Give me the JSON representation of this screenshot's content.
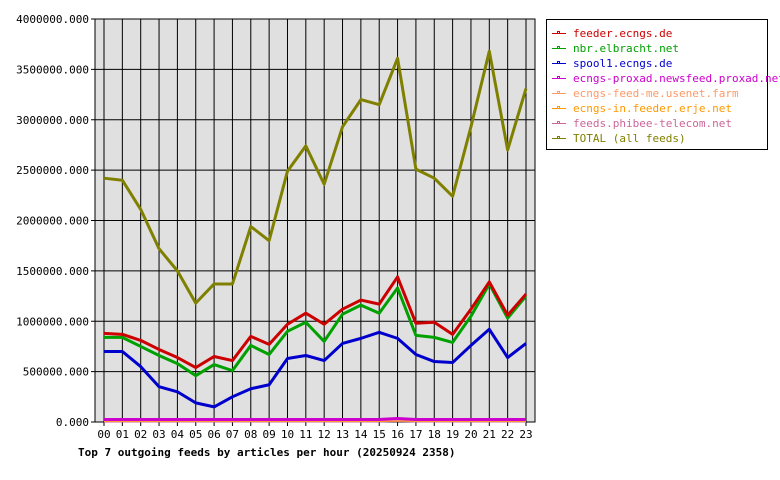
{
  "chart_data": {
    "type": "line",
    "title": "Top 7 outgoing feeds by articles per hour (20250924 2358)",
    "xlabel": "",
    "ylabel": "",
    "categories": [
      "00",
      "01",
      "02",
      "03",
      "04",
      "05",
      "06",
      "07",
      "08",
      "09",
      "10",
      "11",
      "12",
      "13",
      "14",
      "15",
      "16",
      "17",
      "18",
      "19",
      "20",
      "21",
      "22",
      "23"
    ],
    "y_ticks": [
      "0.000",
      "500000.000",
      "1000000.000",
      "1500000.000",
      "2000000.000",
      "2500000.000",
      "3000000.000",
      "3500000.000",
      "4000000.000"
    ],
    "ylim": [
      0,
      4000000
    ],
    "grid": true,
    "legend_position": "right",
    "series": [
      {
        "name": "feeder.ecngs.de",
        "color": "#cc0000",
        "values": [
          880000,
          870000,
          810000,
          720000,
          640000,
          540000,
          650000,
          610000,
          850000,
          770000,
          970000,
          1080000,
          970000,
          1120000,
          1210000,
          1170000,
          1440000,
          980000,
          990000,
          870000,
          1120000,
          1390000,
          1060000,
          1270000
        ]
      },
      {
        "name": "nbr.elbracht.net",
        "color": "#00a000",
        "values": [
          840000,
          840000,
          750000,
          660000,
          580000,
          460000,
          570000,
          510000,
          760000,
          670000,
          900000,
          990000,
          800000,
          1070000,
          1160000,
          1080000,
          1330000,
          860000,
          840000,
          790000,
          1050000,
          1370000,
          1030000,
          1250000
        ]
      },
      {
        "name": "spool1.ecngs.de",
        "color": "#0000cc",
        "values": [
          700000,
          700000,
          550000,
          350000,
          300000,
          190000,
          150000,
          250000,
          330000,
          370000,
          630000,
          660000,
          610000,
          780000,
          830000,
          890000,
          830000,
          670000,
          600000,
          590000,
          760000,
          920000,
          640000,
          780000
        ]
      },
      {
        "name": "ecngs-proxad.newsfeed.proxad.net",
        "color": "#cc00cc",
        "values": [
          25000,
          25000,
          25000,
          25000,
          25000,
          25000,
          25000,
          25000,
          25000,
          25000,
          25000,
          25000,
          25000,
          25000,
          25000,
          25000,
          35000,
          25000,
          25000,
          25000,
          25000,
          25000,
          25000,
          25000
        ]
      },
      {
        "name": "ecngs-feed-me.usenet.farm",
        "color": "#ff9966",
        "values": [
          20000,
          20000,
          20000,
          20000,
          20000,
          20000,
          20000,
          20000,
          20000,
          20000,
          20000,
          20000,
          20000,
          20000,
          20000,
          20000,
          25000,
          20000,
          20000,
          20000,
          20000,
          20000,
          20000,
          20000
        ]
      },
      {
        "name": "ecngs-in.feeder.erje.net",
        "color": "#ff9900",
        "values": [
          15000,
          15000,
          15000,
          15000,
          15000,
          15000,
          15000,
          15000,
          15000,
          15000,
          15000,
          15000,
          15000,
          15000,
          15000,
          15000,
          20000,
          15000,
          15000,
          15000,
          15000,
          15000,
          15000,
          15000
        ]
      },
      {
        "name": "feeds.phibee-telecom.net",
        "color": "#cc6699",
        "values": [
          10000,
          10000,
          10000,
          10000,
          10000,
          10000,
          10000,
          10000,
          10000,
          10000,
          10000,
          10000,
          10000,
          10000,
          10000,
          10000,
          15000,
          10000,
          10000,
          10000,
          10000,
          10000,
          10000,
          10000
        ]
      },
      {
        "name": "TOTAL (all feeds)",
        "color": "#808000",
        "values": [
          2420000,
          2400000,
          2110000,
          1720000,
          1500000,
          1180000,
          1370000,
          1370000,
          1940000,
          1800000,
          2490000,
          2740000,
          2360000,
          2930000,
          3200000,
          3150000,
          3610000,
          2510000,
          2420000,
          2240000,
          2930000,
          3680000,
          2700000,
          3310000
        ]
      }
    ]
  }
}
